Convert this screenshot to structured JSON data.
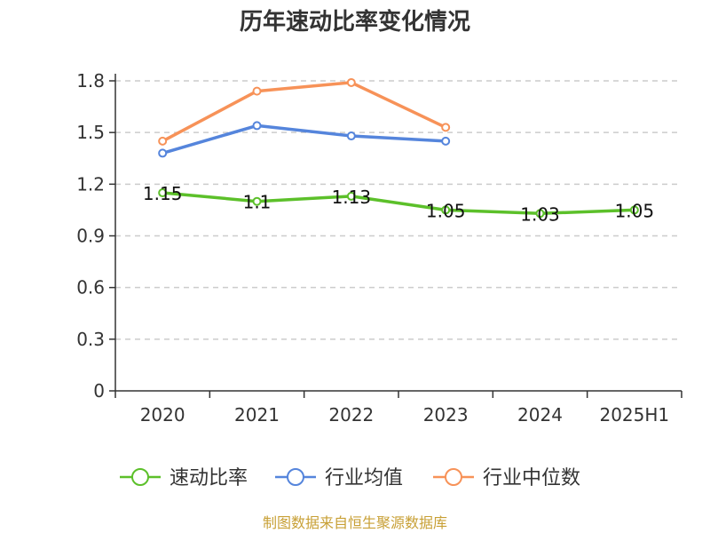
{
  "chart_data": {
    "type": "line",
    "title": "历年速动比率变化情况",
    "categories": [
      "2020",
      "2021",
      "2022",
      "2023",
      "2024",
      "2025H1"
    ],
    "ylim": [
      0,
      1.8
    ],
    "yticks": [
      "0",
      "0.3",
      "0.6",
      "0.9",
      "1.2",
      "1.5",
      "1.8"
    ],
    "grid": true,
    "legend_position": "bottom",
    "series": [
      {
        "name": "速动比率",
        "color": "#5cc02a",
        "values": [
          1.15,
          1.1,
          1.13,
          1.05,
          1.03,
          1.05
        ],
        "labels": [
          "1.15",
          "1.1",
          "1.13",
          "1.05",
          "1.03",
          "1.05"
        ]
      },
      {
        "name": "行业均值",
        "color": "#5585dc",
        "values": [
          1.38,
          1.54,
          1.48,
          1.45,
          null,
          null
        ]
      },
      {
        "name": "行业中位数",
        "color": "#f79258",
        "values": [
          1.45,
          1.74,
          1.79,
          1.53,
          null,
          null
        ]
      }
    ],
    "source": "制图数据来自恒生聚源数据库"
  }
}
